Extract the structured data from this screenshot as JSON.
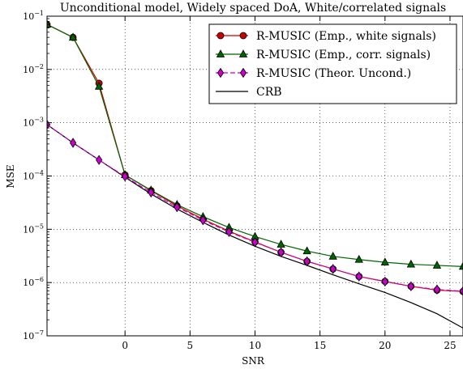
{
  "chart_data": {
    "type": "line",
    "title": "Unconditional model, Widely spaced DoA, White/correlated signals",
    "xlabel": "SNR",
    "ylabel": "MSE",
    "xlim": [
      -6,
      26
    ],
    "ylim": [
      1e-07,
      0.1
    ],
    "yscale": "log",
    "grid": true,
    "legend_position": "top-right",
    "xticks": [
      {
        "value": 0,
        "label": "0"
      },
      {
        "value": 5,
        "label": "5"
      },
      {
        "value": 10,
        "label": "10"
      },
      {
        "value": 15,
        "label": "15"
      },
      {
        "value": 20,
        "label": "20"
      },
      {
        "value": 25,
        "label": "25"
      }
    ],
    "yticks": [
      {
        "value": 1e-07,
        "base": "10",
        "exp": "−7"
      },
      {
        "value": 1e-06,
        "base": "10",
        "exp": "−6"
      },
      {
        "value": 1e-05,
        "base": "10",
        "exp": "−5"
      },
      {
        "value": 0.0001,
        "base": "10",
        "exp": "−4"
      },
      {
        "value": 0.001,
        "base": "10",
        "exp": "−3"
      },
      {
        "value": 0.01,
        "base": "10",
        "exp": "−2"
      },
      {
        "value": 0.1,
        "base": "10",
        "exp": "−1"
      }
    ],
    "series": [
      {
        "name": "R-MUSIC (Emp., white signals)",
        "color": "#cc0000",
        "marker": "circle",
        "dash": "solid",
        "x": [
          -6,
          -4,
          -2,
          0,
          2,
          4,
          6,
          8,
          10,
          12,
          14,
          16,
          18,
          20,
          22,
          24,
          26
        ],
        "y": [
          0.07,
          0.04,
          0.0055,
          0.000105,
          5.3e-05,
          2.75e-05,
          1.55e-05,
          9.2e-06,
          5.8e-06,
          3.7e-06,
          2.5e-06,
          1.8e-06,
          1.3e-06,
          1.05e-06,
          8.5e-07,
          7.2e-07,
          6.8e-07
        ]
      },
      {
        "name": "R-MUSIC (Emp., corr. signals)",
        "color": "#006400",
        "marker": "triangle",
        "dash": "solid",
        "x": [
          -6,
          -4,
          -2,
          0,
          2,
          4,
          6,
          8,
          10,
          12,
          14,
          16,
          18,
          20,
          22,
          24,
          26
        ],
        "y": [
          0.07,
          0.04,
          0.0048,
          0.000105,
          5.4e-05,
          2.9e-05,
          1.72e-05,
          1.08e-05,
          7.3e-06,
          5.2e-06,
          3.9e-06,
          3.1e-06,
          2.7e-06,
          2.4e-06,
          2.2e-06,
          2.1e-06,
          2e-06
        ]
      },
      {
        "name": "R-MUSIC (Theor. Uncond.)",
        "color": "#cc00cc",
        "marker": "diamond",
        "dash": "dashed",
        "x": [
          -6,
          -4,
          -2,
          0,
          2,
          4,
          6,
          8,
          10,
          12,
          14,
          16,
          18,
          20,
          22,
          24,
          26
        ],
        "y": [
          0.00092,
          0.00042,
          0.0002,
          9.8e-05,
          4.9e-05,
          2.6e-05,
          1.48e-05,
          8.9e-06,
          5.7e-06,
          3.7e-06,
          2.5e-06,
          1.8e-06,
          1.3e-06,
          1.04e-06,
          8.5e-07,
          7.4e-07,
          6.9e-07
        ]
      },
      {
        "name": "CRB",
        "color": "#000000",
        "marker": "none",
        "dash": "solid",
        "x": [
          -6,
          -4,
          -2,
          0,
          2,
          4,
          6,
          8,
          10,
          12,
          14,
          16,
          18,
          20,
          22,
          24,
          26
        ],
        "y": [
          0.00092,
          0.00042,
          0.0002,
          9.5e-05,
          4.6e-05,
          2.4e-05,
          1.35e-05,
          7.8e-06,
          4.8e-06,
          3.1e-06,
          2.1e-06,
          1.4e-06,
          9.5e-07,
          6.5e-07,
          4.2e-07,
          2.6e-07,
          1.4e-07
        ]
      }
    ]
  }
}
